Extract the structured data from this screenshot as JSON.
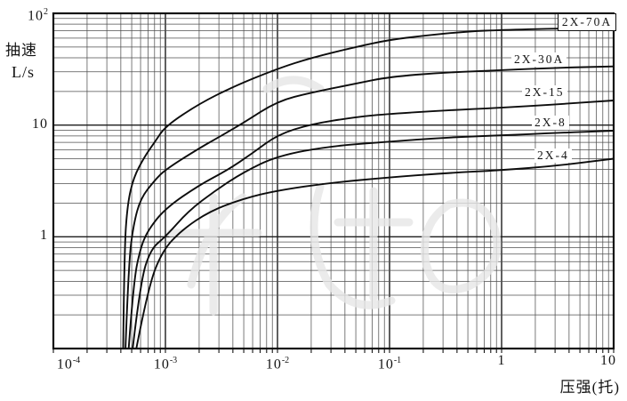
{
  "y_axis": {
    "label_cn": "抽速",
    "label_unit": "L/s"
  },
  "x_axis": {
    "title": "压强(托)"
  },
  "chart_data": {
    "type": "line",
    "title": "",
    "xlabel": "压强(托)",
    "ylabel": "抽速 L/s",
    "x_scale": "log",
    "y_scale": "log",
    "xlim": [
      0.0001,
      10
    ],
    "ylim": [
      0.1,
      100
    ],
    "grid": "full log-log grid with minor lines, black on white",
    "legend_position": "labels at right end of each curve",
    "x_ticks": [
      {
        "base": "10",
        "exp": "-4",
        "value": 0.0001
      },
      {
        "base": "10",
        "exp": "-3",
        "value": 0.001
      },
      {
        "base": "10",
        "exp": "-2",
        "value": 0.01
      },
      {
        "base": "10",
        "exp": "-1",
        "value": 0.1
      },
      {
        "base": "1",
        "exp": "",
        "value": 1
      },
      {
        "base": "10",
        "exp": "",
        "value": 10
      }
    ],
    "y_ticks": [
      {
        "base": "10",
        "exp": "2",
        "value": 100
      },
      {
        "base": "10",
        "exp": "",
        "value": 10
      },
      {
        "base": "1",
        "exp": "",
        "value": 1
      }
    ],
    "series": [
      {
        "name": "2X-70A",
        "label_boxed": true,
        "points": [
          [
            0.00042,
            0.1
          ],
          [
            0.00043,
            0.8
          ],
          [
            0.00046,
            2.0
          ],
          [
            0.00052,
            3.4
          ],
          [
            0.00065,
            5.2
          ],
          [
            0.0008,
            7.0
          ],
          [
            0.001,
            9.8
          ],
          [
            0.002,
            15.5
          ],
          [
            0.004,
            22
          ],
          [
            0.01,
            32
          ],
          [
            0.02,
            40
          ],
          [
            0.05,
            50
          ],
          [
            0.1,
            58
          ],
          [
            0.2,
            63
          ],
          [
            0.5,
            69
          ],
          [
            1,
            71
          ],
          [
            3,
            73
          ],
          [
            10,
            74
          ]
        ]
      },
      {
        "name": "2X-30A",
        "label_boxed": false,
        "points": [
          [
            0.00044,
            0.1
          ],
          [
            0.00047,
            0.6
          ],
          [
            0.00052,
            1.3
          ],
          [
            0.0006,
            2.2
          ],
          [
            0.0008,
            3.2
          ],
          [
            0.001,
            4.0
          ],
          [
            0.002,
            6.2
          ],
          [
            0.003,
            7.8
          ],
          [
            0.005,
            10.5
          ],
          [
            0.01,
            16.4
          ],
          [
            0.02,
            19.5
          ],
          [
            0.05,
            23.5
          ],
          [
            0.1,
            27
          ],
          [
            0.3,
            29.5
          ],
          [
            1,
            31
          ],
          [
            3,
            32.5
          ],
          [
            10,
            33.5
          ]
        ]
      },
      {
        "name": "2X-15",
        "label_boxed": false,
        "points": [
          [
            0.00047,
            0.1
          ],
          [
            0.00052,
            0.4
          ],
          [
            0.0006,
            0.8
          ],
          [
            0.0007,
            1.15
          ],
          [
            0.001,
            1.8
          ],
          [
            0.002,
            2.9
          ],
          [
            0.0035,
            3.9
          ],
          [
            0.006,
            5.6
          ],
          [
            0.01,
            8.2
          ],
          [
            0.02,
            10.2
          ],
          [
            0.05,
            11.8
          ],
          [
            0.1,
            12.6
          ],
          [
            0.3,
            13.5
          ],
          [
            1,
            14.3
          ],
          [
            3,
            15.3
          ],
          [
            10,
            16.6
          ]
        ]
      },
      {
        "name": "2X-8",
        "label_boxed": false,
        "points": [
          [
            0.00051,
            0.1
          ],
          [
            0.0006,
            0.4
          ],
          [
            0.00074,
            0.78
          ],
          [
            0.001,
            1.0
          ],
          [
            0.0016,
            1.7
          ],
          [
            0.0028,
            2.6
          ],
          [
            0.005,
            3.8
          ],
          [
            0.01,
            5.3
          ],
          [
            0.03,
            6.5
          ],
          [
            0.1,
            7.1
          ],
          [
            0.3,
            7.7
          ],
          [
            1,
            8.1
          ],
          [
            3,
            8.5
          ],
          [
            10,
            8.9
          ]
        ]
      },
      {
        "name": "2X-4",
        "label_boxed": false,
        "points": [
          [
            0.00055,
            0.1
          ],
          [
            0.0007,
            0.35
          ],
          [
            0.00094,
            0.75
          ],
          [
            0.0014,
            1.15
          ],
          [
            0.0025,
            1.7
          ],
          [
            0.005,
            2.2
          ],
          [
            0.01,
            2.6
          ],
          [
            0.03,
            3.05
          ],
          [
            0.1,
            3.4
          ],
          [
            0.3,
            3.7
          ],
          [
            1,
            3.95
          ],
          [
            3,
            4.3
          ],
          [
            10,
            5.0
          ]
        ]
      }
    ]
  },
  "colors": {
    "background": "#ffffff",
    "ink": "#141414",
    "grid_minor": "#4f4f4f",
    "grid_major": "#1d1d1d",
    "watermark": "#e6e6e6"
  }
}
